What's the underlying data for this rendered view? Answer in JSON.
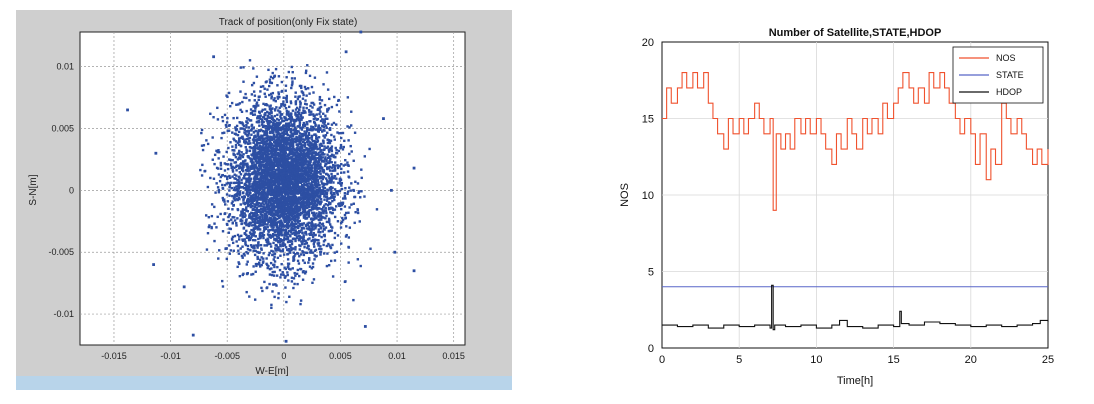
{
  "chart_data": [
    {
      "type": "scatter",
      "title": "Track of position(only Fix state)",
      "xlabel": "W-E[m]",
      "ylabel": "S-N[m]",
      "xlim": [
        -0.018,
        0.016
      ],
      "ylim": [
        -0.0125,
        0.0128
      ],
      "xticks": [
        "-0.015",
        "-0.01",
        "-0.005",
        "0",
        "0.005",
        "0.01",
        "0.015"
      ],
      "xtick_values": [
        -0.015,
        -0.01,
        -0.005,
        0,
        0.005,
        0.01,
        0.015
      ],
      "yticks": [
        "0.01",
        "0.005",
        "0",
        "-0.005",
        "-0.01"
      ],
      "ytick_values": [
        0.01,
        0.005,
        0,
        -0.005,
        -0.01
      ],
      "grid": true,
      "point_color": "#2d4fa3",
      "cluster": {
        "center": [
          0.0,
          0.0008
        ],
        "std": [
          0.0024,
          0.0032
        ],
        "n": 5200
      },
      "outliers": [
        {
          "x": -0.0138,
          "y": 0.0065
        },
        {
          "x": -0.0115,
          "y": -0.006
        },
        {
          "x": -0.0113,
          "y": 0.003
        },
        {
          "x": -0.008,
          "y": -0.0117
        },
        {
          "x": 0.0068,
          "y": 0.0128
        },
        {
          "x": 0.0115,
          "y": 0.0018
        },
        {
          "x": 0.0115,
          "y": -0.0065
        },
        {
          "x": 0.0095,
          "y": 0.0
        },
        {
          "x": 0.0098,
          "y": -0.005
        },
        {
          "x": 0.0072,
          "y": -0.011
        },
        {
          "x": -0.0062,
          "y": 0.0108
        },
        {
          "x": 0.0055,
          "y": 0.0112
        },
        {
          "x": 0.0088,
          "y": 0.0058
        },
        {
          "x": -0.0088,
          "y": -0.0078
        },
        {
          "x": 0.0002,
          "y": -0.0122
        }
      ]
    },
    {
      "type": "line",
      "title": "Number of Satellite,STATE,HDOP",
      "xlabel": "Time[h]",
      "ylabel": "NOS",
      "xlim": [
        0,
        25
      ],
      "ylim": [
        0,
        20
      ],
      "xticks": [
        "0",
        "5",
        "10",
        "15",
        "20",
        "25"
      ],
      "xtick_values": [
        0,
        5,
        10,
        15,
        20,
        25
      ],
      "yticks": [
        "0",
        "5",
        "10",
        "15",
        "20"
      ],
      "ytick_values": [
        0,
        5,
        10,
        15,
        20
      ],
      "grid": true,
      "legend_position": "top-right",
      "series": [
        {
          "name": "NOS",
          "color": "#f0522e",
          "x": [
            0,
            0.3,
            0.6,
            1.0,
            1.3,
            1.6,
            2.0,
            2.3,
            2.7,
            3.0,
            3.3,
            3.6,
            4.0,
            4.3,
            4.6,
            5.0,
            5.3,
            5.6,
            6.0,
            6.3,
            6.6,
            7.0,
            7.2,
            7.4,
            7.7,
            8.0,
            8.3,
            8.6,
            9.0,
            9.3,
            9.6,
            10.0,
            10.3,
            10.6,
            11.0,
            11.3,
            11.6,
            12.0,
            12.3,
            12.6,
            13.0,
            13.3,
            13.6,
            14.0,
            14.3,
            14.6,
            15.0,
            15.3,
            15.6,
            16.0,
            16.3,
            16.6,
            17.0,
            17.3,
            17.6,
            18.0,
            18.3,
            18.6,
            19.0,
            19.3,
            19.6,
            20.0,
            20.3,
            20.6,
            21.0,
            21.3,
            21.6,
            22.0,
            22.3,
            22.6,
            23.0,
            23.3,
            23.6,
            24.0,
            24.3,
            24.6,
            25.0
          ],
          "y": [
            15,
            17,
            16,
            17,
            18,
            17,
            18,
            17,
            18,
            16,
            15,
            14,
            13,
            15,
            14,
            15,
            14,
            15,
            16,
            15,
            14,
            15,
            9,
            14,
            13,
            14,
            13,
            15,
            14,
            15,
            14,
            15,
            14,
            13,
            12,
            14,
            13,
            15,
            14,
            13,
            15,
            14,
            15,
            14,
            16,
            15,
            16,
            17,
            18,
            17,
            16,
            17,
            16,
            18,
            17,
            18,
            17,
            16,
            15,
            14,
            15,
            14,
            12,
            14,
            11,
            13,
            12,
            16,
            15,
            14,
            15,
            14,
            13,
            12,
            13,
            12,
            13
          ]
        },
        {
          "name": "STATE",
          "color": "#5866c8",
          "x": [
            0,
            25
          ],
          "y": [
            4,
            4
          ]
        },
        {
          "name": "HDOP",
          "color": "#111111",
          "x": [
            0,
            1,
            2,
            3,
            4,
            5,
            6,
            7,
            7.1,
            7.2,
            7.3,
            8,
            9,
            10,
            11,
            11.5,
            12,
            13,
            14,
            15,
            15.4,
            15.5,
            16,
            17,
            18,
            19,
            20,
            21,
            22,
            23,
            24,
            24.5,
            25
          ],
          "y": [
            1.5,
            1.4,
            1.5,
            1.3,
            1.5,
            1.4,
            1.5,
            1.3,
            4.1,
            1.2,
            1.5,
            1.4,
            1.5,
            1.3,
            1.5,
            1.8,
            1.4,
            1.3,
            1.5,
            1.4,
            2.4,
            1.6,
            1.5,
            1.7,
            1.6,
            1.5,
            1.4,
            1.5,
            1.4,
            1.5,
            1.6,
            1.8,
            1.7
          ]
        }
      ]
    }
  ]
}
